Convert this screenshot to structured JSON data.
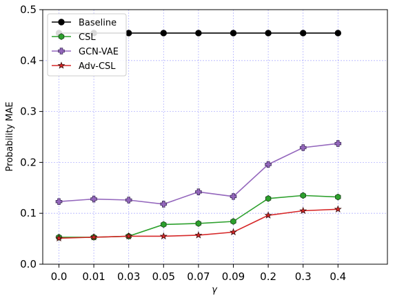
{
  "chart_data": {
    "type": "line",
    "categories": [
      "0.0",
      "0.01",
      "0.03",
      "0.05",
      "0.07",
      "0.09",
      "0.2",
      "0.3",
      "0.4"
    ],
    "xlabel": "γ",
    "ylabel": "Probability MAE",
    "ylim": [
      0,
      0.5
    ],
    "yticks": [
      "0.0",
      "0.1",
      "0.2",
      "0.3",
      "0.4",
      "0.5"
    ],
    "grid": true,
    "legend_position": "top-left",
    "series": [
      {
        "name": "Baseline",
        "color": "#000000",
        "marker": "circle",
        "values": [
          0.454,
          0.454,
          0.454,
          0.454,
          0.454,
          0.454,
          0.454,
          0.454,
          0.454
        ]
      },
      {
        "name": "CSL",
        "color": "#2ca02c",
        "marker": "hexagon",
        "values": [
          0.053,
          0.053,
          0.055,
          0.078,
          0.08,
          0.084,
          0.129,
          0.135,
          0.132
        ]
      },
      {
        "name": "GCN-VAE",
        "color": "#9467bd",
        "marker": "x-filled",
        "values": [
          0.123,
          0.128,
          0.126,
          0.118,
          0.142,
          0.133,
          0.196,
          0.229,
          0.237
        ]
      },
      {
        "name": "Adv-CSL",
        "color": "#d62728",
        "marker": "star",
        "values": [
          0.051,
          0.053,
          0.055,
          0.055,
          0.057,
          0.063,
          0.096,
          0.105,
          0.108
        ]
      }
    ]
  }
}
